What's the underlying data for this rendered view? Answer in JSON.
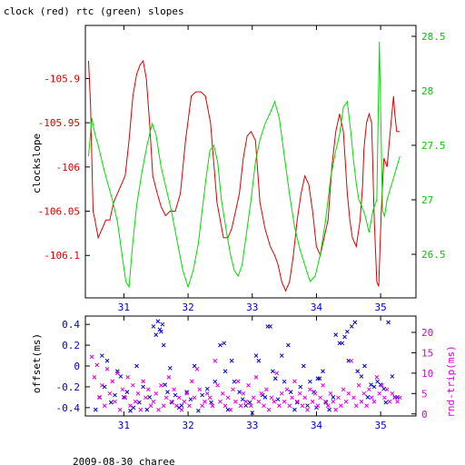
{
  "chart_data": [
    {
      "type": "line",
      "title": "clock (red) rtc (green) slopes",
      "xlabel": "",
      "ylabel": "clockslope",
      "x_ticks": [
        31,
        32,
        33,
        34,
        35
      ],
      "xlim": [
        30.4,
        35.55
      ],
      "y_left": {
        "ylim": [
          -106.148,
          -105.84
        ],
        "ticks": [
          -105.9,
          -105.95,
          -106,
          -106.05,
          -106.1
        ]
      },
      "y_right": {
        "ylim": [
          26.1,
          28.6
        ],
        "ticks": [
          28.5,
          28,
          27.5,
          27,
          26.5
        ]
      },
      "grid": false,
      "colors": {
        "clock": "#dd0000",
        "rtc": "#00dd00",
        "tick_left": "#dd0000",
        "tick_right": "#00cc00"
      },
      "series": [
        {
          "name": "clock",
          "axis": "left",
          "x": [
            30.45,
            30.48,
            30.52,
            30.55,
            30.6,
            30.66,
            30.72,
            30.78,
            30.84,
            30.9,
            30.96,
            31.02,
            31.08,
            31.14,
            31.2,
            31.25,
            31.3,
            31.35,
            31.4,
            31.45,
            31.52,
            31.58,
            31.65,
            31.72,
            31.8,
            31.88,
            31.96,
            32.05,
            32.12,
            32.2,
            32.27,
            32.35,
            32.45,
            32.55,
            32.62,
            32.68,
            32.74,
            32.8,
            32.86,
            32.92,
            32.98,
            33.05,
            33.12,
            33.2,
            33.28,
            33.35,
            33.4,
            33.46,
            33.52,
            33.58,
            33.64,
            33.7,
            33.76,
            33.82,
            33.88,
            33.94,
            34.0,
            34.06,
            34.12,
            34.18,
            34.24,
            34.3,
            34.36,
            34.42,
            34.48,
            34.52,
            34.56,
            34.62,
            34.68,
            34.72,
            34.74,
            34.78,
            34.82,
            34.86,
            34.9,
            34.94,
            34.97,
            35.01,
            35.05,
            35.1,
            35.15,
            35.2,
            35.22,
            35.25,
            35.3
          ],
          "y": [
            -105.88,
            -105.93,
            -106.05,
            -106.06,
            -106.08,
            -106.07,
            -106.06,
            -106.06,
            -106.04,
            -106.03,
            -106.02,
            -106.01,
            -105.97,
            -105.92,
            -105.895,
            -105.885,
            -105.88,
            -105.9,
            -105.95,
            -106.01,
            -106.03,
            -106.045,
            -106.055,
            -106.05,
            -106.05,
            -106.03,
            -105.97,
            -105.92,
            -105.915,
            -105.915,
            -105.92,
            -105.95,
            -106.04,
            -106.08,
            -106.08,
            -106.07,
            -106.05,
            -106.03,
            -105.99,
            -105.965,
            -105.96,
            -105.97,
            -106.04,
            -106.07,
            -106.09,
            -106.1,
            -106.11,
            -106.13,
            -106.14,
            -106.13,
            -106.1,
            -106.06,
            -106.03,
            -106.01,
            -106.02,
            -106.05,
            -106.09,
            -106.1,
            -106.08,
            -106.06,
            -106.0,
            -105.96,
            -105.94,
            -105.96,
            -106.03,
            -106.06,
            -106.08,
            -106.09,
            -106.06,
            -106.02,
            -105.98,
            -105.95,
            -105.94,
            -105.95,
            -106.06,
            -106.13,
            -106.135,
            -106.05,
            -105.99,
            -106.0,
            -105.96,
            -105.92,
            -105.94,
            -105.96,
            -105.96
          ]
        },
        {
          "name": "rtc",
          "axis": "right",
          "x": [
            30.45,
            30.5,
            30.55,
            30.6,
            30.68,
            30.75,
            30.82,
            30.9,
            30.97,
            31.03,
            31.08,
            31.13,
            31.2,
            31.28,
            31.36,
            31.44,
            31.5,
            31.58,
            31.66,
            31.74,
            31.82,
            31.92,
            32.0,
            32.08,
            32.16,
            32.22,
            32.28,
            32.34,
            32.4,
            32.46,
            32.52,
            32.6,
            32.66,
            32.72,
            32.78,
            32.84,
            32.9,
            32.98,
            33.05,
            33.12,
            33.2,
            33.28,
            33.35,
            33.42,
            33.5,
            33.58,
            33.66,
            33.74,
            33.82,
            33.9,
            33.98,
            34.06,
            34.14,
            34.22,
            34.3,
            34.36,
            34.42,
            34.48,
            34.54,
            34.58,
            34.62,
            34.66,
            34.7,
            34.76,
            34.82,
            34.88,
            34.94,
            34.98,
            35.03,
            35.06,
            35.1,
            35.15,
            35.2,
            35.25,
            35.3
          ],
          "y": [
            27.4,
            27.75,
            27.6,
            27.5,
            27.3,
            27.15,
            27.0,
            26.8,
            26.5,
            26.25,
            26.2,
            26.55,
            26.95,
            27.25,
            27.5,
            27.7,
            27.6,
            27.3,
            27.1,
            26.9,
            26.65,
            26.35,
            26.2,
            26.35,
            26.6,
            26.9,
            27.2,
            27.45,
            27.5,
            27.35,
            27.0,
            26.7,
            26.5,
            26.35,
            26.3,
            26.4,
            26.65,
            27.0,
            27.35,
            27.55,
            27.7,
            27.8,
            27.9,
            27.75,
            27.4,
            27.05,
            26.75,
            26.55,
            26.4,
            26.25,
            26.3,
            26.5,
            26.8,
            27.2,
            27.45,
            27.6,
            27.85,
            27.9,
            27.6,
            27.35,
            27.15,
            27.0,
            26.95,
            26.85,
            26.7,
            26.9,
            27.0,
            28.45,
            26.9,
            26.85,
            27.0,
            27.1,
            27.2,
            27.3,
            27.4
          ]
        }
      ]
    },
    {
      "type": "scatter",
      "title": "",
      "xlabel": "2009-08-30 charee",
      "ylabel": "offset(ms)",
      "y2label": "rnd-trip(ms)",
      "x_ticks": [
        31,
        32,
        33,
        34,
        35
      ],
      "xlim": [
        30.4,
        35.55
      ],
      "y_left": {
        "ylim": [
          -0.48,
          0.48
        ],
        "ticks": [
          0.4,
          0.2,
          0,
          -0.2,
          -0.4
        ]
      },
      "y_right": {
        "ylim": [
          -0.5,
          24
        ],
        "ticks": [
          20,
          15,
          10,
          5,
          0
        ]
      },
      "grid": false,
      "colors": {
        "offset": "#0000cc",
        "rndtrip": "#dd00dd",
        "tick_left": "#0000cc",
        "tick_right": "#dd00dd"
      },
      "series": [
        {
          "name": "offset",
          "axis": "left",
          "marker": "x",
          "x": [
            30.56,
            30.62,
            30.66,
            30.7,
            30.74,
            30.8,
            30.86,
            30.9,
            30.95,
            31.0,
            31.05,
            31.1,
            31.15,
            31.2,
            31.24,
            31.3,
            31.36,
            31.4,
            31.46,
            31.5,
            31.53,
            31.56,
            31.58,
            31.6,
            31.62,
            31.64,
            31.68,
            31.72,
            31.75,
            31.8,
            31.86,
            31.9,
            31.98,
            32.04,
            32.1,
            32.16,
            32.22,
            32.3,
            32.36,
            32.42,
            32.5,
            32.56,
            32.58,
            32.62,
            32.68,
            32.72,
            32.8,
            32.85,
            32.9,
            32.96,
            33.0,
            33.06,
            33.1,
            33.16,
            33.2,
            33.24,
            33.28,
            33.32,
            33.36,
            33.4,
            33.46,
            33.5,
            33.56,
            33.6,
            33.66,
            33.7,
            33.75,
            33.8,
            33.86,
            33.9,
            33.96,
            34.0,
            34.02,
            34.05,
            34.1,
            34.15,
            34.2,
            34.26,
            34.3,
            34.36,
            34.4,
            34.44,
            34.48,
            34.5,
            34.55,
            34.6,
            34.64,
            34.7,
            34.75,
            34.8,
            34.85,
            34.9,
            34.95,
            35.0,
            35.05,
            35.08,
            35.12,
            35.18,
            35.22,
            35.26
          ],
          "y": [
            -0.42,
            -0.3,
            0.1,
            -0.2,
            0.05,
            -0.35,
            -0.28,
            -0.05,
            -0.1,
            -0.3,
            -0.25,
            -0.43,
            -0.4,
            0.0,
            -0.35,
            -0.2,
            -0.42,
            -0.3,
            0.38,
            0.3,
            0.43,
            0.35,
            0.33,
            0.4,
            0.2,
            -0.18,
            -0.25,
            -0.02,
            -0.35,
            -0.28,
            -0.4,
            -0.38,
            -0.25,
            -0.32,
            0.0,
            -0.43,
            -0.28,
            -0.22,
            -0.35,
            -0.15,
            0.2,
            0.22,
            -0.05,
            -0.42,
            0.05,
            -0.15,
            -0.25,
            -0.32,
            -0.38,
            -0.35,
            -0.45,
            0.1,
            0.05,
            -0.28,
            -0.3,
            0.38,
            0.38,
            -0.05,
            -0.12,
            -0.32,
            0.1,
            -0.15,
            0.2,
            -0.25,
            -0.42,
            -0.35,
            -0.2,
            0.0,
            -0.38,
            -0.15,
            -0.25,
            -0.4,
            -0.12,
            -0.12,
            -0.05,
            -0.35,
            -0.42,
            -0.3,
            0.3,
            0.22,
            0.22,
            0.28,
            0.33,
            0.05,
            0.38,
            0.42,
            -0.05,
            -0.1,
            0.0,
            -0.3,
            -0.18,
            -0.2,
            -0.15,
            -0.18,
            -0.22,
            -0.35,
            0.42,
            -0.1,
            -0.3,
            -0.3
          ]
        },
        {
          "name": "rnd-trip",
          "axis": "right",
          "marker": "x",
          "x": [
            30.5,
            30.54,
            30.58,
            30.62,
            30.66,
            30.7,
            30.74,
            30.78,
            30.82,
            30.86,
            30.9,
            30.94,
            30.98,
            31.02,
            31.06,
            31.1,
            31.14,
            31.18,
            31.22,
            31.26,
            31.3,
            31.34,
            31.38,
            31.42,
            31.46,
            31.5,
            31.54,
            31.58,
            31.62,
            31.66,
            31.7,
            31.74,
            31.78,
            31.82,
            31.86,
            31.9,
            31.94,
            31.98,
            32.02,
            32.06,
            32.1,
            32.14,
            32.18,
            32.22,
            32.26,
            32.3,
            32.34,
            32.38,
            32.42,
            32.46,
            32.5,
            32.54,
            32.58,
            32.62,
            32.66,
            32.7,
            32.74,
            32.78,
            32.82,
            32.86,
            32.9,
            32.94,
            32.98,
            33.02,
            33.06,
            33.1,
            33.14,
            33.18,
            33.22,
            33.26,
            33.3,
            33.34,
            33.38,
            33.42,
            33.46,
            33.5,
            33.54,
            33.58,
            33.62,
            33.66,
            33.7,
            33.74,
            33.78,
            33.82,
            33.86,
            33.9,
            33.94,
            33.98,
            34.02,
            34.06,
            34.1,
            34.14,
            34.18,
            34.22,
            34.26,
            34.3,
            34.34,
            34.38,
            34.42,
            34.46,
            34.5,
            34.54,
            34.58,
            34.62,
            34.66,
            34.7,
            34.74,
            34.78,
            34.82,
            34.86,
            34.9,
            34.94,
            34.98,
            35.02,
            35.06,
            35.1,
            35.14,
            35.18,
            35.22,
            35.26,
            35.3
          ],
          "y": [
            14,
            9,
            12,
            4,
            7,
            2,
            11,
            5,
            8,
            3,
            10,
            1,
            6,
            4,
            9,
            2,
            7,
            3,
            5,
            1,
            8,
            4,
            6,
            2,
            3,
            5,
            1,
            7,
            2,
            4,
            9,
            3,
            6,
            2,
            4,
            1,
            3,
            5,
            2,
            8,
            4,
            11,
            6,
            2,
            3,
            5,
            4,
            2,
            13,
            7,
            3,
            5,
            2,
            4,
            1,
            6,
            3,
            8,
            2,
            5,
            3,
            7,
            2,
            4,
            9,
            3,
            5,
            2,
            6,
            1,
            4,
            3,
            10,
            2,
            5,
            3,
            6,
            2,
            4,
            8,
            3,
            5,
            2,
            4,
            1,
            6,
            3,
            5,
            2,
            4,
            7,
            3,
            2,
            5,
            3,
            1,
            4,
            2,
            6,
            3,
            5,
            13,
            4,
            2,
            7,
            3,
            5,
            2,
            6,
            4,
            3,
            9,
            5,
            7,
            4,
            6,
            3,
            5,
            4,
            3,
            4
          ]
        }
      ]
    }
  ]
}
